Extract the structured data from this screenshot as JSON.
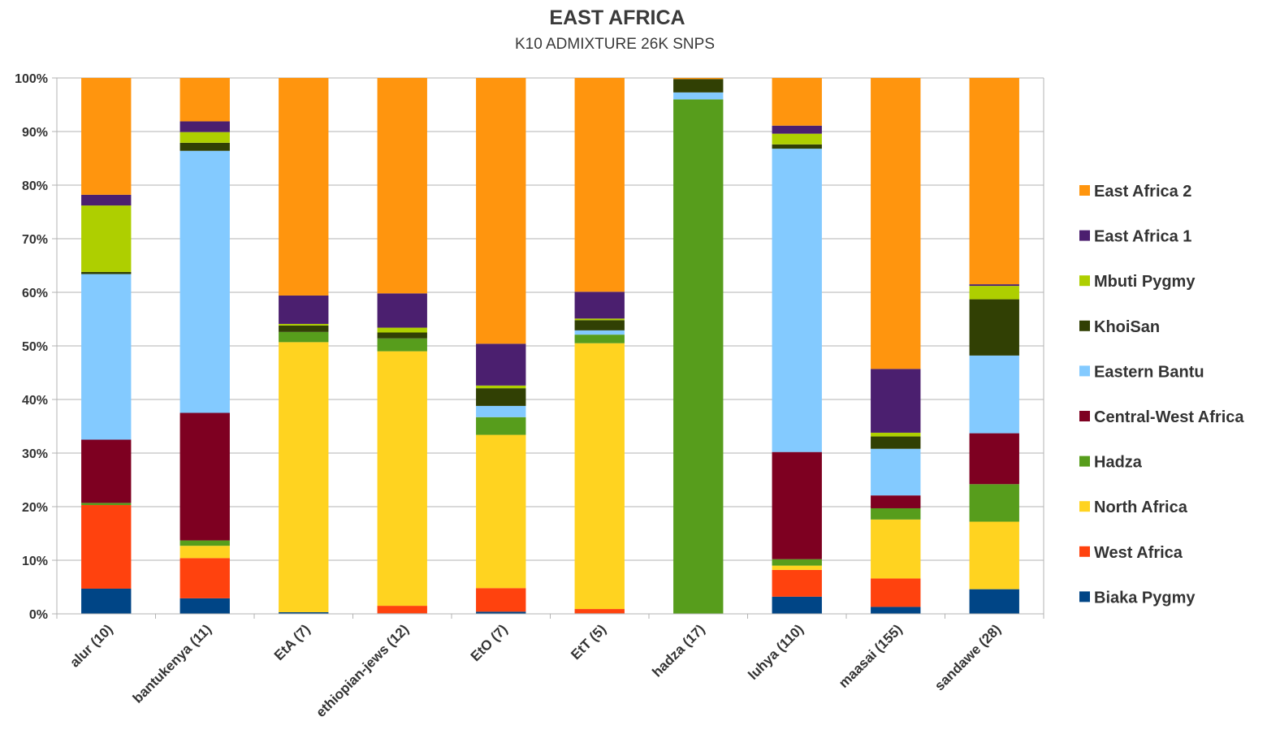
{
  "chart_data": {
    "type": "bar",
    "stacked": true,
    "title": "EAST AFRICA",
    "subtitle": "K10 ADMIXTURE 26K SNPS",
    "xlabel": "",
    "ylabel": "",
    "ylim": [
      0,
      100
    ],
    "yticks": [
      "0%",
      "10%",
      "20%",
      "30%",
      "40%",
      "50%",
      "60%",
      "70%",
      "80%",
      "90%",
      "100%"
    ],
    "grid": true,
    "legend_position": "right",
    "categories": [
      "alur (10)",
      "bantukenya (11)",
      "EtA (7)",
      "ethiopian-jews (12)",
      "EtO (7)",
      "EtT (5)",
      "hadza (17)",
      "luhya (110)",
      "maasai (155)",
      "sandawe (28)"
    ],
    "series": [
      {
        "name": "Biaka Pygmy",
        "color": "#004586",
        "values": [
          4.7,
          2.9,
          0.3,
          0.1,
          0.4,
          0.1,
          0.0,
          3.2,
          1.3,
          4.6
        ]
      },
      {
        "name": "West Africa",
        "color": "#ff420e",
        "values": [
          15.6,
          7.5,
          0.0,
          1.4,
          4.4,
          0.8,
          0.0,
          5.0,
          5.3,
          0.0
        ]
      },
      {
        "name": "North Africa",
        "color": "#ffd320",
        "values": [
          0.0,
          2.3,
          50.4,
          47.5,
          28.6,
          49.6,
          0.0,
          0.8,
          11.0,
          12.6
        ]
      },
      {
        "name": "Hadza",
        "color": "#579d1c",
        "values": [
          0.4,
          1.0,
          1.9,
          2.4,
          3.3,
          1.6,
          96.0,
          1.2,
          2.1,
          7.0
        ]
      },
      {
        "name": "Central-West  Africa",
        "color": "#7e0021",
        "values": [
          11.8,
          23.8,
          0.0,
          0.0,
          0.0,
          0.0,
          0.0,
          20.0,
          2.4,
          9.5
        ]
      },
      {
        "name": "Eastern Bantu",
        "color": "#83caff",
        "values": [
          30.9,
          48.9,
          0.0,
          0.0,
          2.1,
          0.8,
          1.3,
          56.6,
          8.7,
          14.5
        ]
      },
      {
        "name": "KhoiSan",
        "color": "#314004",
        "values": [
          0.4,
          1.5,
          1.2,
          1.1,
          3.3,
          1.9,
          2.5,
          0.8,
          2.3,
          10.5
        ]
      },
      {
        "name": "Mbuti Pygmy",
        "color": "#aecf00",
        "values": [
          12.4,
          2.0,
          0.3,
          0.9,
          0.5,
          0.3,
          0.0,
          2.0,
          0.7,
          2.5
        ]
      },
      {
        "name": "East Africa 1",
        "color": "#4b1f6f",
        "values": [
          2.0,
          2.0,
          5.3,
          6.4,
          7.8,
          5.0,
          0.0,
          1.5,
          11.9,
          0.3
        ]
      },
      {
        "name": "East Africa 2",
        "color": "#ff950e",
        "values": [
          21.8,
          8.1,
          40.6,
          40.2,
          49.6,
          39.9,
          0.2,
          8.9,
          54.3,
          38.5
        ]
      }
    ],
    "legend_order": [
      "East Africa 2",
      "East Africa 1",
      "Mbuti Pygmy",
      "KhoiSan",
      "Eastern Bantu",
      "Central-West  Africa",
      "Hadza",
      "North Africa",
      "West Africa",
      "Biaka Pygmy"
    ]
  }
}
